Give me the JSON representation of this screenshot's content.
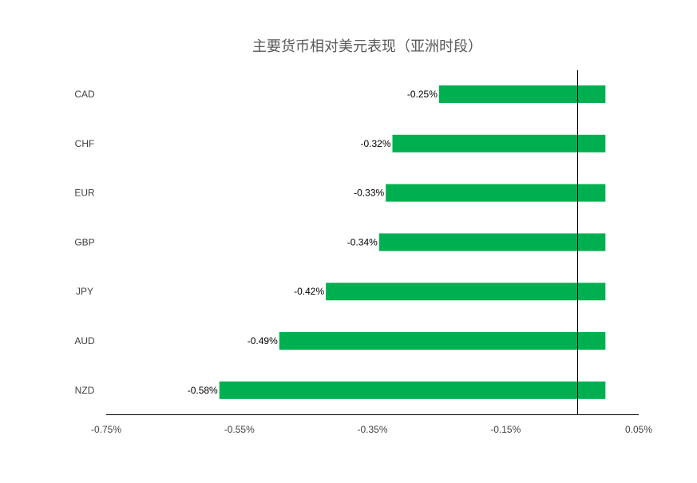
{
  "chart_data": {
    "type": "bar",
    "orientation": "horizontal",
    "title": "主要货币相对美元表现（亚洲时段）",
    "categories": [
      "CAD",
      "CHF",
      "EUR",
      "GBP",
      "JPY",
      "AUD",
      "NZD"
    ],
    "values": [
      -0.25,
      -0.32,
      -0.33,
      -0.34,
      -0.42,
      -0.49,
      -0.58
    ],
    "data_labels": [
      "-0.25%",
      "-0.32%",
      "-0.33%",
      "-0.34%",
      "-0.42%",
      "-0.49%",
      "-0.58%"
    ],
    "x_ticks": [
      -0.75,
      -0.55,
      -0.35,
      -0.15,
      0.05
    ],
    "x_tick_labels": [
      "-0.75%",
      "-0.55%",
      "-0.35%",
      "-0.15%",
      "0.05%"
    ],
    "xlim": [
      -0.75,
      0.05
    ],
    "grid": false,
    "legend": "none",
    "bar_color": "#00B050"
  }
}
